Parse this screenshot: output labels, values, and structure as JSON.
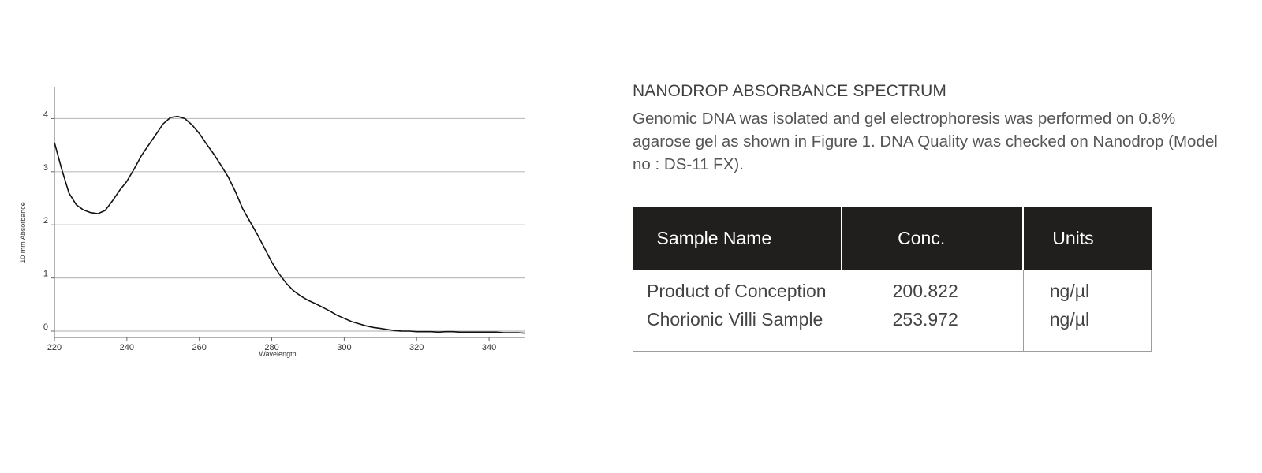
{
  "chart_data": {
    "type": "line",
    "xlabel": "Wavelength",
    "ylabel": "10 mm Absorbance",
    "xlim": [
      220,
      350
    ],
    "ylim": [
      0,
      4.6
    ],
    "x_ticks": [
      220,
      240,
      260,
      280,
      300,
      320,
      340
    ],
    "y_ticks": [
      0,
      1,
      2,
      3,
      4
    ],
    "grid": "horizontal",
    "series": [
      {
        "x": [
          220,
          222,
          224,
          226,
          228,
          230,
          232,
          234,
          236,
          238,
          240,
          242,
          244,
          246,
          248,
          250,
          252,
          254,
          256,
          258,
          260,
          262,
          264,
          266,
          268,
          270,
          272,
          274,
          276,
          278,
          280,
          282,
          284,
          286,
          288,
          290,
          292,
          294,
          296,
          298,
          300,
          302,
          304,
          306,
          308,
          310,
          312,
          314,
          316,
          318,
          320,
          322,
          324,
          326,
          328,
          330,
          332,
          334,
          336,
          338,
          340,
          342,
          344,
          346,
          348,
          350
        ],
        "y": [
          3.55,
          3.05,
          2.6,
          2.38,
          2.28,
          2.23,
          2.21,
          2.27,
          2.45,
          2.65,
          2.82,
          3.05,
          3.3,
          3.5,
          3.7,
          3.9,
          4.02,
          4.04,
          4.0,
          3.88,
          3.72,
          3.52,
          3.33,
          3.12,
          2.9,
          2.62,
          2.3,
          2.06,
          1.82,
          1.56,
          1.3,
          1.08,
          0.9,
          0.76,
          0.66,
          0.58,
          0.52,
          0.45,
          0.38,
          0.3,
          0.24,
          0.18,
          0.14,
          0.1,
          0.07,
          0.05,
          0.03,
          0.01,
          0.0,
          0.0,
          -0.01,
          -0.01,
          -0.01,
          -0.02,
          -0.01,
          -0.01,
          -0.02,
          -0.02,
          -0.02,
          -0.02,
          -0.02,
          -0.02,
          -0.03,
          -0.03,
          -0.03,
          -0.04
        ],
        "color": "#111111"
      }
    ]
  },
  "info": {
    "title": "NANODROP ABSORBANCE SPECTRUM",
    "description": "Genomic DNA was isolated and gel electrophoresis was performed on 0.8% agarose gel as shown in Figure 1. DNA Quality was checked on Nanodrop (Model no : DS-11 FX)."
  },
  "table": {
    "headers": {
      "name": "Sample Name",
      "conc": "Conc.",
      "units": "Units"
    },
    "rows": [
      {
        "name": "Product of Conception",
        "conc": "200.822",
        "units": "ng/µl"
      },
      {
        "name": "Chorionic Villi Sample",
        "conc": "253.972",
        "units": "ng/µl"
      }
    ]
  },
  "colors": {
    "header_bg": "#201f1d",
    "grid": "#bdbdbd",
    "line": "#111111"
  }
}
